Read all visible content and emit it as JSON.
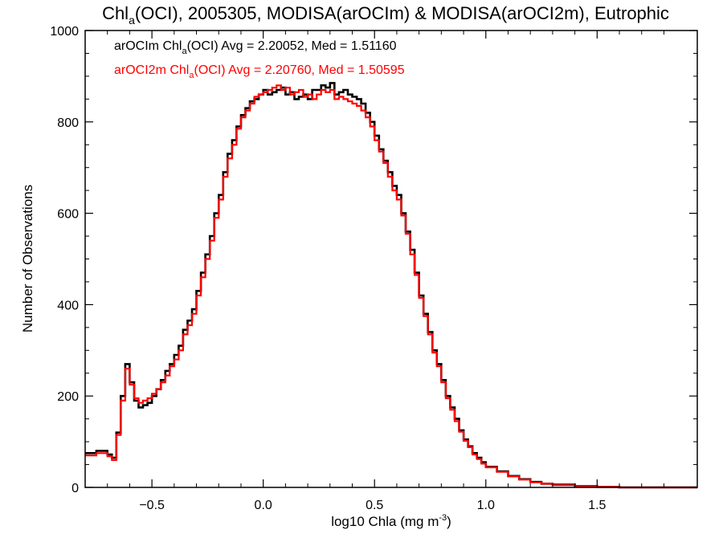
{
  "chart_data": {
    "type": "line",
    "title": {
      "prefix": "Chl",
      "sub": "a",
      "suffix": "(OCI), 2005305, MODISA(arOCIm) & MODISA(arOCI2m), Eutrophic"
    },
    "xlabel": {
      "prefix": "log10 Chla (mg m",
      "sup": "-3",
      "suffix": ")"
    },
    "ylabel": "Number of Observations",
    "xlim": [
      -0.8,
      1.95
    ],
    "ylim": [
      0,
      1000
    ],
    "x_ticks": [
      {
        "value": -0.5,
        "label": "−0.5"
      },
      {
        "value": 0.0,
        "label": "0.0"
      },
      {
        "value": 0.5,
        "label": "0.5"
      },
      {
        "value": 1.0,
        "label": "1.0"
      },
      {
        "value": 1.5,
        "label": "1.5"
      }
    ],
    "y_ticks": [
      {
        "value": 0,
        "label": "0"
      },
      {
        "value": 200,
        "label": "200"
      },
      {
        "value": 400,
        "label": "400"
      },
      {
        "value": 600,
        "label": "600"
      },
      {
        "value": 800,
        "label": "800"
      },
      {
        "value": 1000,
        "label": "1000"
      }
    ],
    "legend_placement": "top-left",
    "grid": false,
    "series": [
      {
        "label_prefix": "arOCIm Chl",
        "label_sub": "a",
        "label_suffix": "(OCI) Avg = 2.20052, Med = 1.51160",
        "color": "#000000",
        "points": [
          [
            -0.8,
            75
          ],
          [
            -0.75,
            80
          ],
          [
            -0.7,
            72
          ],
          [
            -0.68,
            65
          ],
          [
            -0.66,
            120
          ],
          [
            -0.64,
            200
          ],
          [
            -0.62,
            270
          ],
          [
            -0.6,
            230
          ],
          [
            -0.58,
            190
          ],
          [
            -0.56,
            175
          ],
          [
            -0.54,
            180
          ],
          [
            -0.52,
            185
          ],
          [
            -0.5,
            200
          ],
          [
            -0.48,
            215
          ],
          [
            -0.46,
            235
          ],
          [
            -0.44,
            255
          ],
          [
            -0.42,
            270
          ],
          [
            -0.4,
            290
          ],
          [
            -0.38,
            310
          ],
          [
            -0.36,
            345
          ],
          [
            -0.34,
            365
          ],
          [
            -0.32,
            390
          ],
          [
            -0.3,
            430
          ],
          [
            -0.28,
            470
          ],
          [
            -0.26,
            510
          ],
          [
            -0.24,
            550
          ],
          [
            -0.22,
            600
          ],
          [
            -0.2,
            640
          ],
          [
            -0.18,
            690
          ],
          [
            -0.16,
            730
          ],
          [
            -0.14,
            760
          ],
          [
            -0.12,
            790
          ],
          [
            -0.1,
            815
          ],
          [
            -0.08,
            830
          ],
          [
            -0.06,
            845
          ],
          [
            -0.04,
            850
          ],
          [
            -0.02,
            860
          ],
          [
            0.0,
            870
          ],
          [
            0.02,
            860
          ],
          [
            0.04,
            865
          ],
          [
            0.06,
            870
          ],
          [
            0.08,
            875
          ],
          [
            0.1,
            860
          ],
          [
            0.12,
            865
          ],
          [
            0.14,
            850
          ],
          [
            0.16,
            855
          ],
          [
            0.18,
            860
          ],
          [
            0.2,
            850
          ],
          [
            0.22,
            870
          ],
          [
            0.24,
            870
          ],
          [
            0.26,
            880
          ],
          [
            0.28,
            875
          ],
          [
            0.3,
            885
          ],
          [
            0.32,
            860
          ],
          [
            0.34,
            865
          ],
          [
            0.36,
            870
          ],
          [
            0.38,
            860
          ],
          [
            0.4,
            855
          ],
          [
            0.42,
            850
          ],
          [
            0.44,
            840
          ],
          [
            0.46,
            820
          ],
          [
            0.48,
            800
          ],
          [
            0.5,
            770
          ],
          [
            0.52,
            740
          ],
          [
            0.54,
            715
          ],
          [
            0.56,
            690
          ],
          [
            0.58,
            660
          ],
          [
            0.6,
            640
          ],
          [
            0.62,
            600
          ],
          [
            0.64,
            560
          ],
          [
            0.66,
            520
          ],
          [
            0.68,
            470
          ],
          [
            0.7,
            420
          ],
          [
            0.72,
            380
          ],
          [
            0.74,
            340
          ],
          [
            0.76,
            300
          ],
          [
            0.78,
            270
          ],
          [
            0.8,
            235
          ],
          [
            0.82,
            200
          ],
          [
            0.84,
            175
          ],
          [
            0.86,
            150
          ],
          [
            0.88,
            125
          ],
          [
            0.9,
            105
          ],
          [
            0.92,
            90
          ],
          [
            0.94,
            75
          ],
          [
            0.96,
            65
          ],
          [
            0.98,
            55
          ],
          [
            1.0,
            45
          ],
          [
            1.05,
            35
          ],
          [
            1.1,
            25
          ],
          [
            1.15,
            18
          ],
          [
            1.2,
            12
          ],
          [
            1.25,
            8
          ],
          [
            1.3,
            6
          ],
          [
            1.4,
            3
          ],
          [
            1.5,
            1
          ],
          [
            1.6,
            0
          ],
          [
            1.95,
            0
          ]
        ]
      },
      {
        "label_prefix": "arOCI2m Chl",
        "label_sub": "a",
        "label_suffix": "(OCI) Avg = 2.20760, Med = 1.50595",
        "color": "#ff0000",
        "points": [
          [
            -0.8,
            70
          ],
          [
            -0.75,
            75
          ],
          [
            -0.7,
            68
          ],
          [
            -0.68,
            60
          ],
          [
            -0.66,
            115
          ],
          [
            -0.64,
            190
          ],
          [
            -0.62,
            260
          ],
          [
            -0.6,
            225
          ],
          [
            -0.58,
            195
          ],
          [
            -0.56,
            185
          ],
          [
            -0.54,
            190
          ],
          [
            -0.52,
            195
          ],
          [
            -0.5,
            205
          ],
          [
            -0.48,
            215
          ],
          [
            -0.46,
            230
          ],
          [
            -0.44,
            245
          ],
          [
            -0.42,
            265
          ],
          [
            -0.4,
            280
          ],
          [
            -0.38,
            300
          ],
          [
            -0.36,
            335
          ],
          [
            -0.34,
            355
          ],
          [
            -0.32,
            380
          ],
          [
            -0.3,
            420
          ],
          [
            -0.28,
            460
          ],
          [
            -0.26,
            500
          ],
          [
            -0.24,
            540
          ],
          [
            -0.22,
            590
          ],
          [
            -0.2,
            630
          ],
          [
            -0.18,
            680
          ],
          [
            -0.16,
            720
          ],
          [
            -0.14,
            750
          ],
          [
            -0.12,
            785
          ],
          [
            -0.1,
            810
          ],
          [
            -0.08,
            825
          ],
          [
            -0.06,
            840
          ],
          [
            -0.04,
            855
          ],
          [
            -0.02,
            860
          ],
          [
            0.0,
            865
          ],
          [
            0.02,
            870
          ],
          [
            0.04,
            875
          ],
          [
            0.06,
            880
          ],
          [
            0.08,
            870
          ],
          [
            0.1,
            875
          ],
          [
            0.12,
            860
          ],
          [
            0.14,
            865
          ],
          [
            0.16,
            870
          ],
          [
            0.18,
            855
          ],
          [
            0.2,
            860
          ],
          [
            0.22,
            850
          ],
          [
            0.24,
            860
          ],
          [
            0.26,
            870
          ],
          [
            0.28,
            865
          ],
          [
            0.3,
            870
          ],
          [
            0.32,
            850
          ],
          [
            0.34,
            855
          ],
          [
            0.36,
            850
          ],
          [
            0.38,
            845
          ],
          [
            0.4,
            840
          ],
          [
            0.42,
            835
          ],
          [
            0.44,
            825
          ],
          [
            0.46,
            810
          ],
          [
            0.48,
            790
          ],
          [
            0.5,
            760
          ],
          [
            0.52,
            735
          ],
          [
            0.54,
            710
          ],
          [
            0.56,
            680
          ],
          [
            0.58,
            650
          ],
          [
            0.6,
            630
          ],
          [
            0.62,
            595
          ],
          [
            0.64,
            555
          ],
          [
            0.66,
            510
          ],
          [
            0.68,
            465
          ],
          [
            0.7,
            415
          ],
          [
            0.72,
            375
          ],
          [
            0.74,
            335
          ],
          [
            0.76,
            295
          ],
          [
            0.78,
            265
          ],
          [
            0.8,
            230
          ],
          [
            0.82,
            195
          ],
          [
            0.84,
            170
          ],
          [
            0.86,
            145
          ],
          [
            0.88,
            122
          ],
          [
            0.9,
            102
          ],
          [
            0.92,
            88
          ],
          [
            0.94,
            72
          ],
          [
            0.96,
            62
          ],
          [
            0.98,
            52
          ],
          [
            1.0,
            44
          ],
          [
            1.05,
            34
          ],
          [
            1.1,
            24
          ],
          [
            1.15,
            17
          ],
          [
            1.2,
            11
          ],
          [
            1.25,
            8
          ],
          [
            1.3,
            5
          ],
          [
            1.4,
            3
          ],
          [
            1.5,
            1
          ],
          [
            1.6,
            0
          ],
          [
            1.95,
            0
          ]
        ]
      }
    ]
  }
}
